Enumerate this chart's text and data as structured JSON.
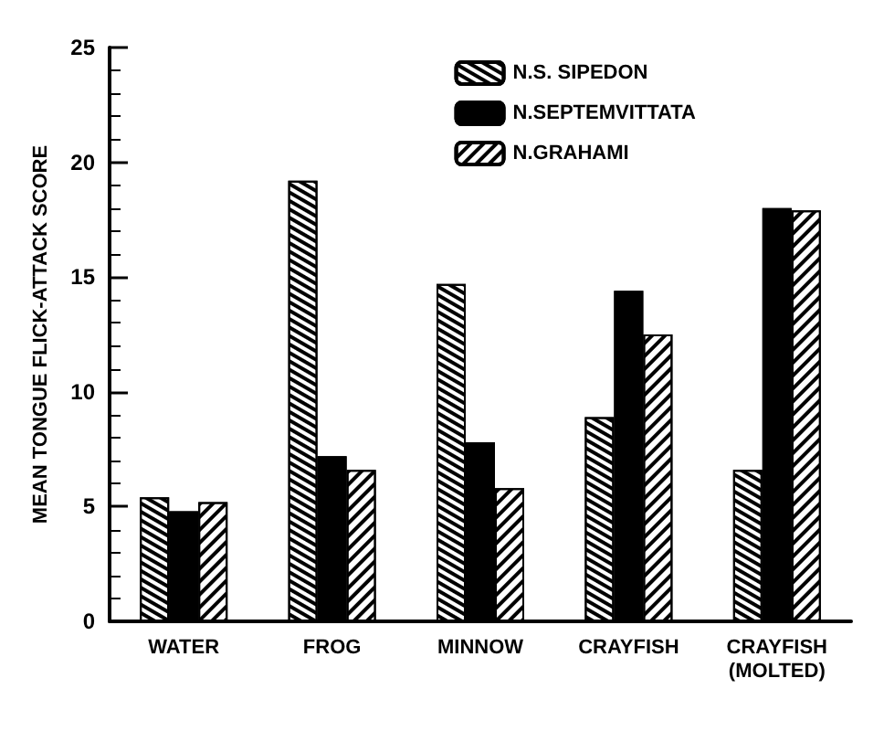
{
  "chart_data": {
    "type": "bar",
    "ylabel": "MEAN TONGUE FLICK-ATTACK SCORE",
    "categories": [
      "WATER",
      "FROG",
      "MINNOW",
      "CRAYFISH",
      "CRAYFISH\n(MOLTED)"
    ],
    "series": [
      {
        "name": "N.S. SIPEDON",
        "color": "#ffffff",
        "values": [
          5.4,
          19.2,
          14.7,
          8.9,
          6.6
        ]
      },
      {
        "name": "N.SEPTEMVITTATA",
        "color": "#000000",
        "values": [
          4.8,
          7.2,
          7.8,
          14.4,
          18.0
        ]
      },
      {
        "name": "N.GRAHAMI",
        "color": "#ffffff",
        "values": [
          5.2,
          6.6,
          5.8,
          12.5,
          17.9
        ]
      }
    ],
    "ylim": [
      0,
      25
    ],
    "yticks": [
      0,
      5,
      10,
      15,
      20,
      25
    ],
    "grid": false,
    "legend": "top right"
  }
}
